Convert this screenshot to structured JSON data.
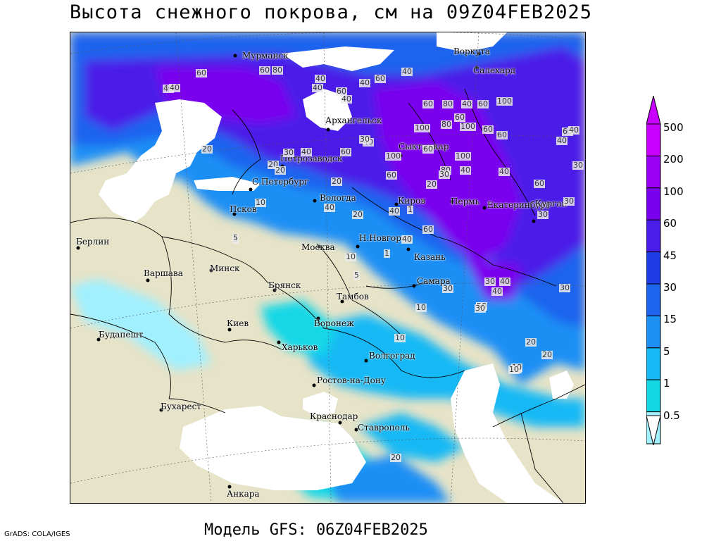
{
  "header": {
    "title": "Высота снежного покрова, см на 09Z04FEB2025"
  },
  "footer": {
    "credit": "GrADS: COLA/IGES",
    "model_run": "Модель GFS: 06Z04FEB2025"
  },
  "legend": {
    "labels": [
      "500",
      "200",
      "100",
      "60",
      "45",
      "30",
      "15",
      "5",
      "1",
      "0.5"
    ],
    "colors": [
      "#c800ff",
      "#9b00f5",
      "#7a00ee",
      "#4b1de8",
      "#1f3de6",
      "#1e64ee",
      "#1e8ff5",
      "#14b9f5",
      "#14d7e6",
      "#a0f0ff"
    ]
  },
  "map": {
    "cities": [
      {
        "name": "Мурманск"
      },
      {
        "name": "Воркута"
      },
      {
        "name": "Салехард"
      },
      {
        "name": "Архангельск"
      },
      {
        "name": "Сыктывкар"
      },
      {
        "name": "Петрозаводск"
      },
      {
        "name": "С.Петербург"
      },
      {
        "name": "Вологда"
      },
      {
        "name": "Киров"
      },
      {
        "name": "Пермь"
      },
      {
        "name": "Екатеринбург"
      },
      {
        "name": "Курган"
      },
      {
        "name": "Псков"
      },
      {
        "name": "Н.Новгород"
      },
      {
        "name": "Москва"
      },
      {
        "name": "Казань"
      },
      {
        "name": "Берлин"
      },
      {
        "name": "Минск"
      },
      {
        "name": "Варшава"
      },
      {
        "name": "Брянск"
      },
      {
        "name": "Тамбов"
      },
      {
        "name": "Самара"
      },
      {
        "name": "Киев"
      },
      {
        "name": "Воронеж"
      },
      {
        "name": "Будапешт"
      },
      {
        "name": "Харьков"
      },
      {
        "name": "Волгоград"
      },
      {
        "name": "Ростов-на-Дону"
      },
      {
        "name": "Бухарест"
      },
      {
        "name": "Краснодар"
      },
      {
        "name": "Ставрополь"
      },
      {
        "name": "Анкара"
      }
    ],
    "contour_labels": [
      "40",
      "60",
      "40",
      "60",
      "80",
      "40",
      "60",
      "40",
      "40",
      "60",
      "60",
      "80",
      "40",
      "100",
      "60",
      "100",
      "80",
      "60",
      "40",
      "100",
      "60",
      "80",
      "40",
      "20",
      "40",
      "60",
      "40",
      "40",
      "60",
      "30",
      "20",
      "30",
      "40",
      "20",
      "5",
      "10",
      "20",
      "30",
      "20",
      "60",
      "40",
      "40",
      "100",
      "60",
      "60",
      "100",
      "30",
      "40",
      "30",
      "60",
      "40",
      "20",
      "40",
      "60",
      "30",
      "40",
      "30",
      "40",
      "5",
      "10",
      "10",
      "20",
      "5",
      "30",
      "20",
      "20",
      "10",
      "10",
      "5",
      "1",
      "1",
      "30",
      "40",
      "30",
      "20",
      "10"
    ]
  }
}
